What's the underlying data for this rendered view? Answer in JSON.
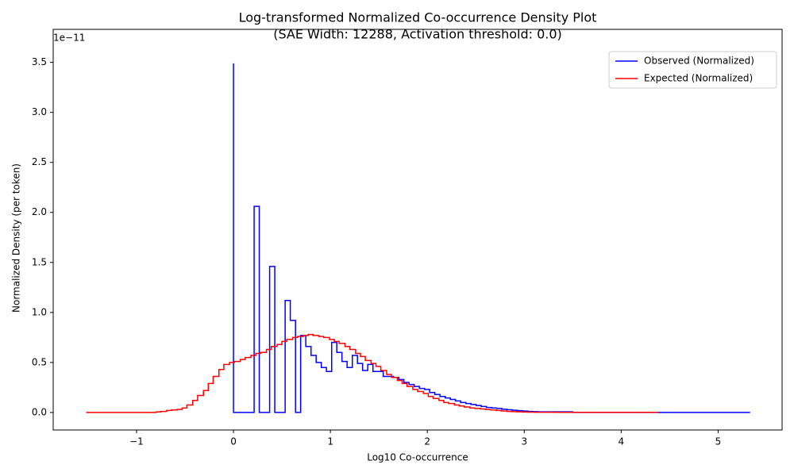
{
  "chart_data": {
    "type": "step",
    "title": "Log-transformed Normalized Co-occurrence Density Plot",
    "subtitle": "(SAE Width: 12288, Activation threshold: 0.0)",
    "xlabel": "Log10 Co-occurrence",
    "ylabel": "Normalized Density (per token)",
    "y_offset_label": "1e−11",
    "legend": "upper right",
    "xlim": [
      -1.86,
      5.66
    ],
    "ylim": [
      -0.175,
      3.83
    ],
    "xticks": [
      {
        "value": -1,
        "label": "−1"
      },
      0,
      1,
      2,
      3,
      4,
      5
    ],
    "yticks": [
      {
        "value": 0,
        "label": "0.0"
      },
      0.5,
      {
        "value": 1,
        "label": "1.0"
      },
      1.5,
      {
        "value": 2,
        "label": "2.0"
      },
      2.5,
      {
        "value": 3,
        "label": "3.0"
      },
      3.5
    ],
    "series": [
      {
        "name": "Observed (Normalized)",
        "color": "#0000ff",
        "x": [
          0,
          0,
          0.213,
          0.266,
          0.373,
          0.426,
          0.533,
          0.586,
          0.64,
          0.693,
          0.746,
          0.8,
          0.853,
          0.906,
          0.959,
          1.013,
          1.066,
          1.119,
          1.172,
          1.226,
          1.279,
          1.332,
          1.385,
          1.439,
          1.545,
          1.598,
          1.652,
          1.705,
          1.758,
          1.811,
          1.864,
          1.918,
          1.971,
          2.024,
          2.077,
          2.13,
          2.184,
          2.237,
          2.29,
          2.343,
          2.397,
          2.45,
          2.503,
          2.556,
          2.61,
          2.663,
          2.716,
          2.769,
          2.822,
          2.876,
          2.929,
          2.982,
          3.035,
          3.088,
          3.142,
          3.5,
          5.33
        ],
        "values": [
          3.49,
          0,
          2.06,
          0,
          1.46,
          0,
          1.12,
          0.92,
          0,
          0.77,
          0.66,
          0.57,
          0.5,
          0.45,
          0.41,
          0.7,
          0.6,
          0.51,
          0.45,
          0.57,
          0.49,
          0.42,
          0.48,
          0.41,
          0.36,
          0.36,
          0.35,
          0.33,
          0.3,
          0.28,
          0.26,
          0.24,
          0.23,
          0.2,
          0.18,
          0.16,
          0.145,
          0.13,
          0.115,
          0.1,
          0.09,
          0.08,
          0.07,
          0.06,
          0.05,
          0.045,
          0.04,
          0.032,
          0.027,
          0.022,
          0.018,
          0.014,
          0.01,
          0.008,
          0.006,
          0,
          0
        ]
      },
      {
        "name": "Expected (Normalized)",
        "color": "#ff0000",
        "x": [
          -1.52,
          -0.8,
          -0.75,
          -0.69,
          -0.64,
          -0.58,
          -0.53,
          -0.48,
          -0.42,
          -0.37,
          -0.31,
          -0.26,
          -0.21,
          -0.15,
          -0.1,
          -0.04,
          0.01,
          0.07,
          0.12,
          0.18,
          0.23,
          0.28,
          0.34,
          0.39,
          0.45,
          0.5,
          0.55,
          0.61,
          0.66,
          0.72,
          0.77,
          0.82,
          0.88,
          0.93,
          0.99,
          1.04,
          1.09,
          1.15,
          1.2,
          1.26,
          1.31,
          1.36,
          1.42,
          1.47,
          1.52,
          1.58,
          1.63,
          1.69,
          1.74,
          1.79,
          1.85,
          1.9,
          1.96,
          2.01,
          2.06,
          2.12,
          2.17,
          2.22,
          2.28,
          2.33,
          2.38,
          2.44,
          2.49,
          2.55,
          2.6,
          2.65,
          2.71,
          2.76,
          2.82,
          2.87,
          2.92,
          2.98,
          3.03,
          3.1,
          3.3,
          4.38
        ],
        "values": [
          0,
          0.005,
          0.01,
          0.02,
          0.025,
          0.03,
          0.045,
          0.075,
          0.12,
          0.17,
          0.22,
          0.29,
          0.36,
          0.43,
          0.48,
          0.5,
          0.51,
          0.53,
          0.55,
          0.57,
          0.59,
          0.6,
          0.63,
          0.66,
          0.68,
          0.71,
          0.73,
          0.75,
          0.76,
          0.77,
          0.78,
          0.77,
          0.76,
          0.75,
          0.73,
          0.71,
          0.69,
          0.66,
          0.63,
          0.59,
          0.56,
          0.52,
          0.49,
          0.46,
          0.42,
          0.38,
          0.35,
          0.32,
          0.29,
          0.26,
          0.23,
          0.21,
          0.19,
          0.16,
          0.14,
          0.12,
          0.1,
          0.09,
          0.075,
          0.065,
          0.055,
          0.045,
          0.04,
          0.035,
          0.03,
          0.025,
          0.02,
          0.015,
          0.01,
          0.008,
          0.006,
          0.004,
          0.003,
          0.002,
          0.001,
          0
        ]
      }
    ]
  }
}
